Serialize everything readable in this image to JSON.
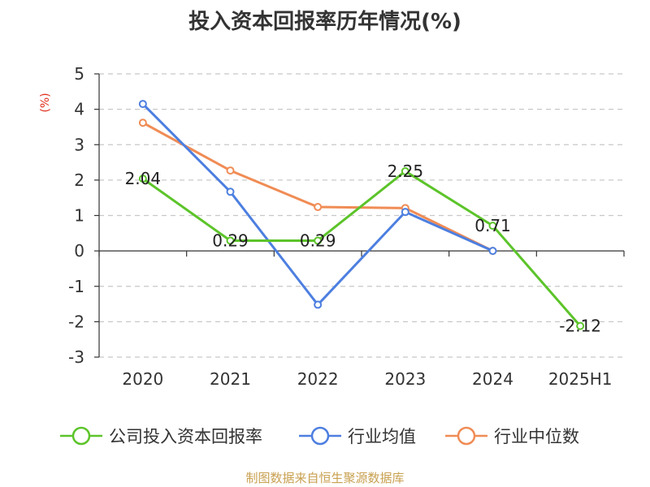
{
  "chart_data": {
    "type": "line",
    "title": "投入资本回报率历年情况(%)",
    "ylabel": "(%)",
    "xlabel": "",
    "categories": [
      "2020",
      "2021",
      "2022",
      "2023",
      "2024",
      "2025H1"
    ],
    "ylim": [
      -3,
      5
    ],
    "yticks": [
      "5",
      "4",
      "3",
      "2",
      "1",
      "0",
      "-1",
      "-2",
      "-3"
    ],
    "grid": true,
    "legend_position": "bottom",
    "series": [
      {
        "name": "公司投入资本回报率",
        "color": "#5cc42a",
        "values": [
          2.04,
          0.29,
          0.29,
          2.25,
          0.71,
          -2.12
        ],
        "labels": [
          "2.04",
          "0.29",
          "0.29",
          "2.25",
          "0.71",
          "-2.12"
        ]
      },
      {
        "name": "行业均值",
        "color": "#4d7fe0",
        "values": [
          4.15,
          1.67,
          -1.52,
          1.1,
          0.0,
          null
        ]
      },
      {
        "name": "行业中位数",
        "color": "#f08c55",
        "values": [
          3.62,
          2.27,
          1.24,
          1.21,
          0.0,
          null
        ]
      }
    ]
  },
  "source": "制图数据来自恒生聚源数据库"
}
